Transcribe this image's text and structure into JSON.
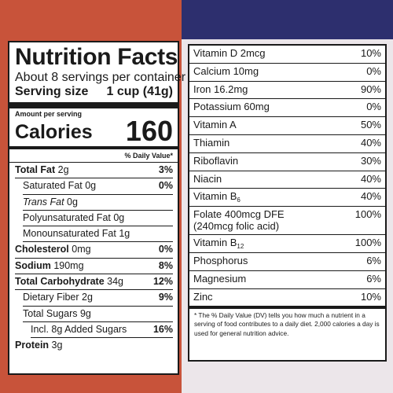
{
  "title": "Nutrition Facts",
  "servings_per_container": "About 8 servings per container",
  "serving_size": {
    "label": "Serving size",
    "value": "1 cup (41g)"
  },
  "amount_per_serving": "Amount per serving",
  "calories": {
    "label": "Calories",
    "value": "160"
  },
  "dv_header": "% Daily Value*",
  "nutrients": [
    {
      "name": "Total Fat",
      "amount": "2g",
      "dv": "3%"
    },
    {
      "name": "Saturated Fat",
      "amount": "0g",
      "dv": "0%"
    },
    {
      "name": "Trans Fat",
      "amount": "0g",
      "dv": ""
    },
    {
      "name": "Polyunsaturated Fat",
      "amount": "0g",
      "dv": ""
    },
    {
      "name": "Monounsaturated Fat",
      "amount": "1g",
      "dv": ""
    },
    {
      "name": "Cholesterol",
      "amount": "0mg",
      "dv": "0%"
    },
    {
      "name": "Sodium",
      "amount": "190mg",
      "dv": "8%"
    },
    {
      "name": "Total Carbohydrate",
      "amount": "34g",
      "dv": "12%"
    },
    {
      "name": "Dietary Fiber",
      "amount": "2g",
      "dv": "9%"
    },
    {
      "name": "Total Sugars",
      "amount": "9g",
      "dv": ""
    },
    {
      "name": "Incl. 8g Added Sugars",
      "amount": "",
      "dv": "16%"
    },
    {
      "name": "Protein",
      "amount": "3g",
      "dv": ""
    }
  ],
  "vitamins": [
    {
      "name": "Vitamin D 2mcg",
      "dv": "10%"
    },
    {
      "name": "Calcium 10mg",
      "dv": "0%"
    },
    {
      "name": "Iron 16.2mg",
      "dv": "90%"
    },
    {
      "name": "Potassium 60mg",
      "dv": "0%"
    },
    {
      "name": "Vitamin A",
      "dv": "50%"
    },
    {
      "name": "Thiamin",
      "dv": "40%"
    },
    {
      "name": "Riboflavin",
      "dv": "30%"
    },
    {
      "name": "Niacin",
      "dv": "40%"
    },
    {
      "name": "Vitamin B",
      "sub": "6",
      "dv": "40%"
    },
    {
      "name": "Folate 400mcg DFE",
      "line2": "(240mcg folic acid)",
      "dv": "100%"
    },
    {
      "name": "Vitamin B",
      "sub": "12",
      "dv": "100%"
    },
    {
      "name": "Phosphorus",
      "dv": "6%"
    },
    {
      "name": "Magnesium",
      "dv": "6%"
    },
    {
      "name": "Zinc",
      "dv": "10%"
    }
  ],
  "footnote": "* The % Daily Value (DV) tells you how much a nutrient in a serving of food contributes to a daily diet. 2,000 calories a day is used for general nutrition advice.",
  "colors": {
    "box_red": "#c8533a",
    "box_navy": "#2d2f6e",
    "ink": "#1a1a1a"
  }
}
